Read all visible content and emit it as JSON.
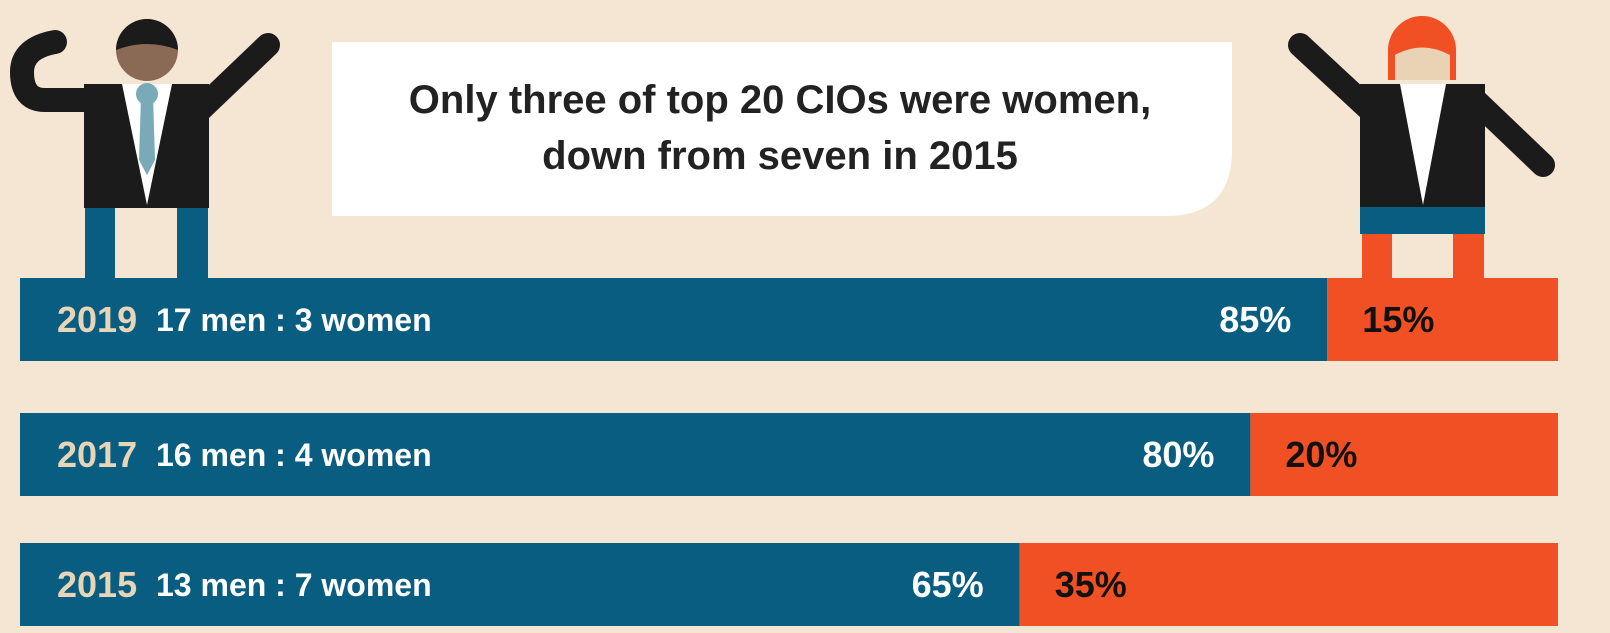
{
  "chart_data": {
    "type": "bar",
    "orientation": "horizontal",
    "stacked": true,
    "title": "Only three of top 20 CIOs were women, down from seven in 2015",
    "categories": [
      "2019",
      "2017",
      "2015"
    ],
    "annotations": [
      "17 men : 3 women",
      "16 men : 4 women",
      "13 men : 7 women"
    ],
    "xlim": [
      0,
      100
    ],
    "series": [
      {
        "color": "#085d80",
        "values": [
          85,
          80,
          65
        ],
        "value_labels": [
          "85%",
          "80%",
          "65%"
        ]
      },
      {
        "color": "#f05023",
        "values": [
          15,
          20,
          35
        ],
        "value_labels": [
          "15%",
          "20%",
          "35%"
        ]
      }
    ]
  }
}
